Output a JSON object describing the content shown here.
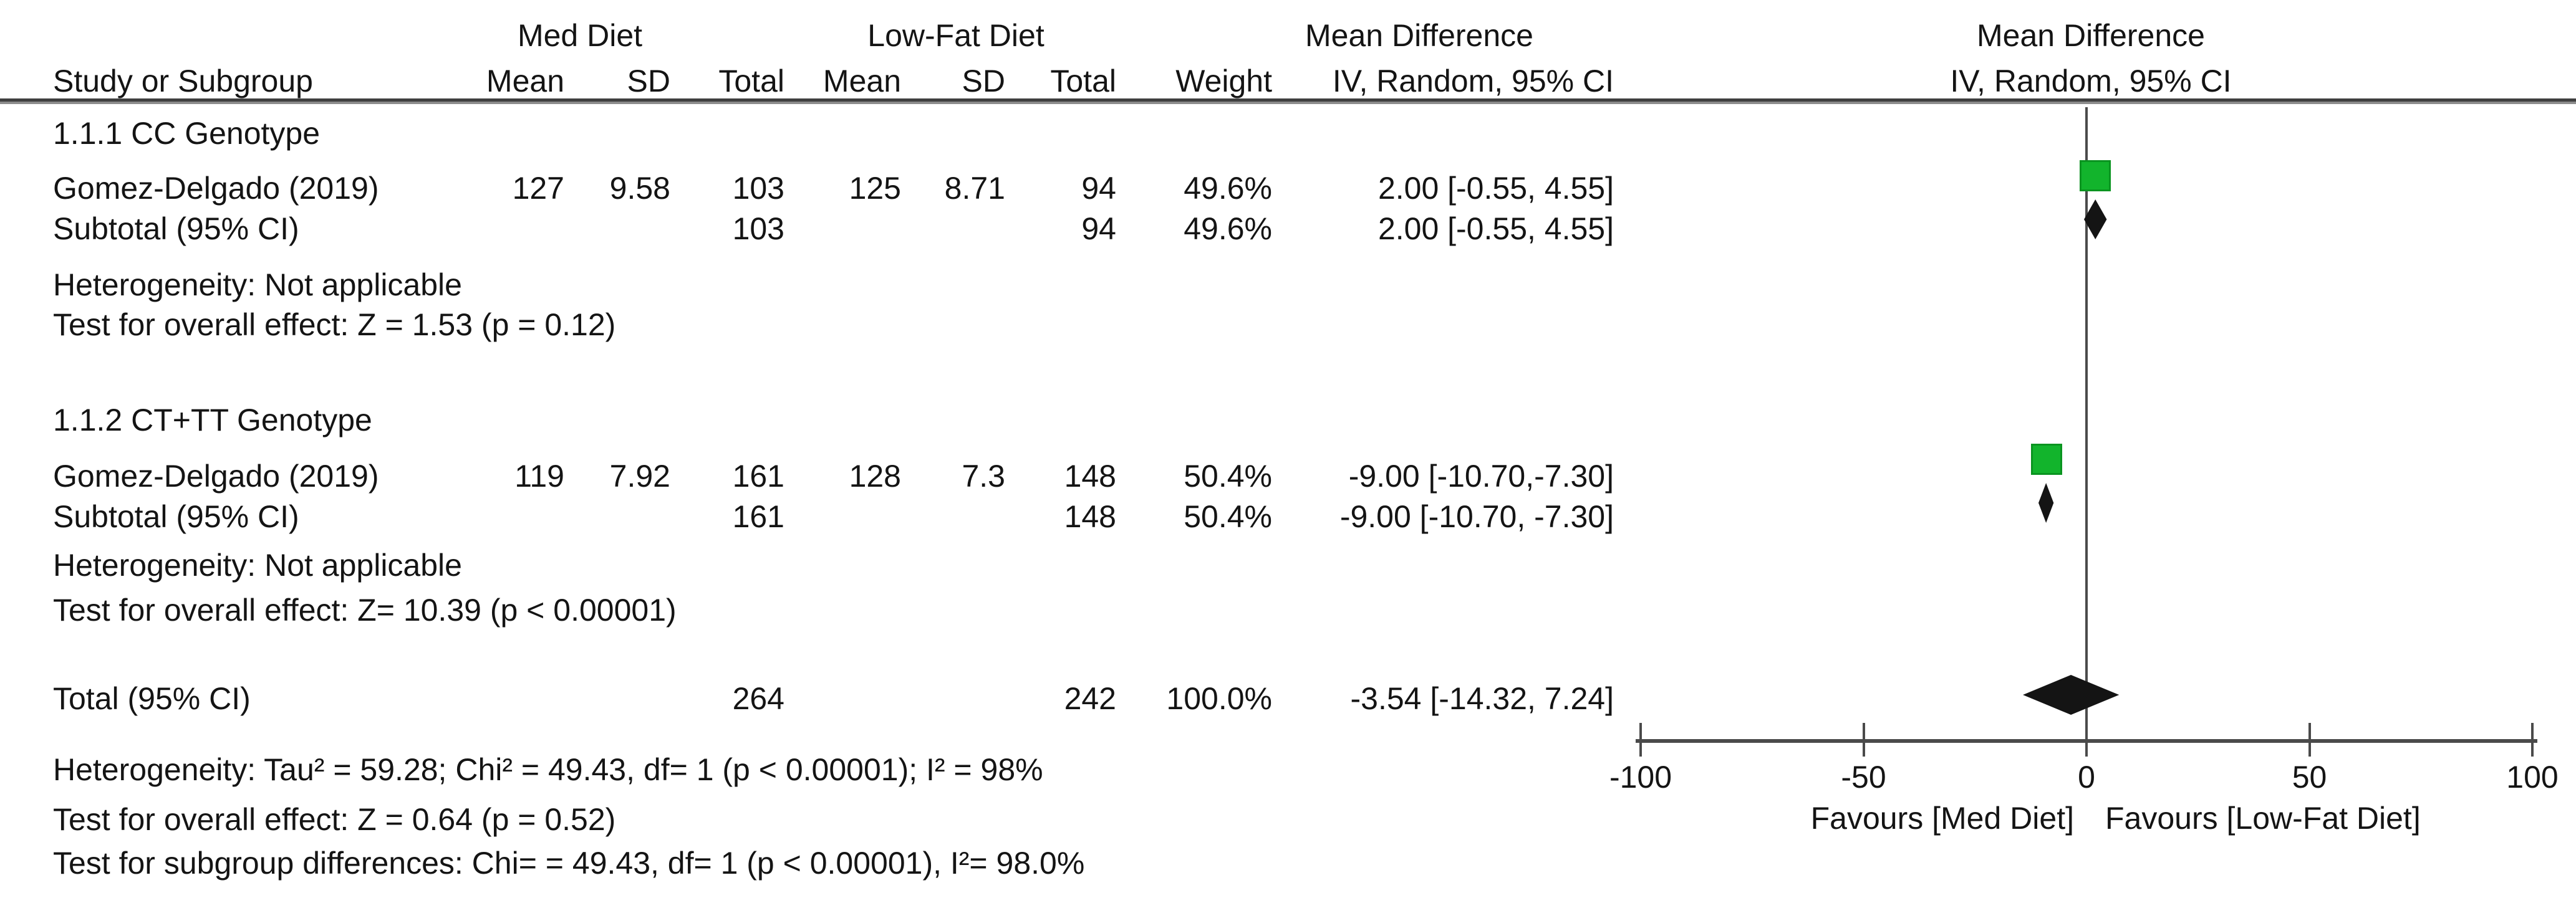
{
  "header": {
    "group_med": "Med Diet",
    "group_lowfat": "Low-Fat Diet",
    "group_effect": "Mean Difference",
    "group_effect_plot": "Mean Difference",
    "col_study": "Study or Subgroup",
    "col_mean": "Mean",
    "col_sd": "SD",
    "col_total": "Total",
    "col_weight": "Weight",
    "col_iv_random": "IV, Random, 95% CI",
    "col_iv_random_plot": "IV, Random, 95% CI"
  },
  "sections": [
    {
      "label": "1.1.1 CC Genotype",
      "study": {
        "name": "Gomez-Delgado (2019)",
        "mean1": "127",
        "sd1": "9.58",
        "total1": "103",
        "mean2": "125",
        "sd2": "8.71",
        "total2": "94",
        "weight": "49.6%",
        "ci": "2.00 [-0.55, 4.55]"
      },
      "subtotal": {
        "name": "Subtotal (95% CI)",
        "total1": "103",
        "total2": "94",
        "weight": "49.6%",
        "ci": "2.00 [-0.55, 4.55]"
      },
      "heterogeneity": "Heterogeneity: Not applicable",
      "overall_test": "Test for overall effect: Z = 1.53 (p = 0.12)"
    },
    {
      "label": "1.1.2 CT+TT Genotype",
      "study": {
        "name": "Gomez-Delgado (2019)",
        "mean1": "119",
        "sd1": "7.92",
        "total1": "161",
        "mean2": "128",
        "sd2": "7.3",
        "total2": "148",
        "weight": "50.4%",
        "ci": "-9.00 [-10.70,-7.30]"
      },
      "subtotal": {
        "name": "Subtotal (95% CI)",
        "total1": "161",
        "total2": "148",
        "weight": "50.4%",
        "ci": "-9.00 [-10.70, -7.30]"
      },
      "heterogeneity": "Heterogeneity: Not applicable",
      "overall_test": "Test for overall effect: Z= 10.39 (p < 0.00001)"
    }
  ],
  "total_row": {
    "name": "Total (95% CI)",
    "total1": "264",
    "total2": "242",
    "weight": "100.0%",
    "ci": "-3.54 [-14.32, 7.24]"
  },
  "footer": {
    "heterogeneity": "Heterogeneity: Tau² = 59.28; Chi² = 49.43, df= 1 (p < 0.00001); I² = 98%",
    "overall_test": "Test for overall effect: Z = 0.64 (p = 0.52)",
    "subgroup_test": "Test for subgroup differences: Chi= = 49.43, df= 1 (p < 0.00001), I²= 98.0%"
  },
  "chart_data": {
    "type": "forest",
    "effect_measure": "Mean Difference, IV, Random, 95% CI",
    "x_axis": {
      "min": -100,
      "max": 100,
      "ticks": [
        -100,
        -50,
        0,
        50,
        100
      ],
      "zero_line": 0,
      "label_left": "Favours [Med Diet]",
      "label_right": "Favours [Low-Fat Diet]"
    },
    "colors": {
      "study_marker": "#12B42C",
      "study_marker_border": "#0A9420",
      "diamond": "#141414",
      "axis": "#4a4a4a"
    },
    "markers": [
      {
        "row": "cc-study",
        "kind": "square",
        "est": 2.0,
        "lo": -0.55,
        "hi": 4.55,
        "weight_pct": 49.6
      },
      {
        "row": "cc-subtotal",
        "kind": "diamond",
        "est": 2.0,
        "lo": -0.55,
        "hi": 4.55
      },
      {
        "row": "cttt-study",
        "kind": "square",
        "est": -9.0,
        "lo": -10.7,
        "hi": -7.3,
        "weight_pct": 50.4
      },
      {
        "row": "cttt-subtotal",
        "kind": "diamond",
        "est": -9.0,
        "lo": -10.7,
        "hi": -7.3
      },
      {
        "row": "total",
        "kind": "diamond",
        "est": -3.54,
        "lo": -14.32,
        "hi": 7.24,
        "weight_pct": 100.0
      }
    ]
  }
}
